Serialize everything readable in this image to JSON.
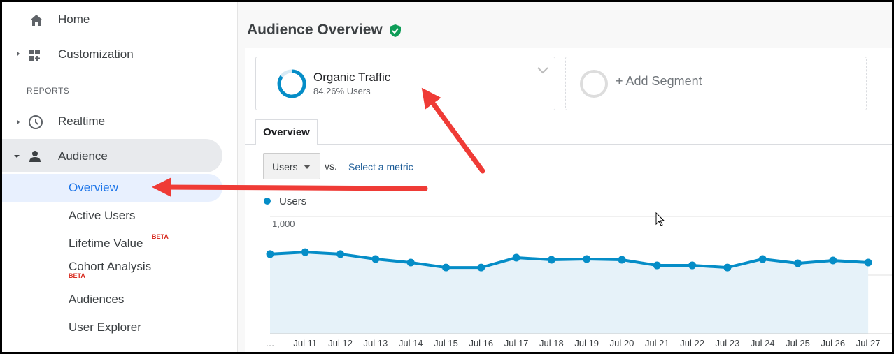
{
  "sidebar": {
    "home": "Home",
    "customization": "Customization",
    "section": "REPORTS",
    "realtime": "Realtime",
    "audience": "Audience",
    "audience_items": [
      "Overview",
      "Active Users",
      "Lifetime Value",
      "Cohort Analysis",
      "Audiences",
      "User Explorer"
    ],
    "badges": [
      "BETA",
      "BETA"
    ]
  },
  "header": {
    "title": "Audience Overview"
  },
  "segments": {
    "active": {
      "name": "Organic Traffic",
      "detail": "84.26% Users"
    },
    "add": "+ Add Segment"
  },
  "tabs": [
    "Overview"
  ],
  "metric_picker": {
    "metric": "Users",
    "vs": "vs.",
    "link": "Select a metric"
  },
  "chart_data": {
    "type": "line",
    "categories": [
      "…",
      "Jul 11",
      "Jul 12",
      "Jul 13",
      "Jul 14",
      "Jul 15",
      "Jul 16",
      "Jul 17",
      "Jul 18",
      "Jul 19",
      "Jul 20",
      "Jul 21",
      "Jul 22",
      "Jul 23",
      "Jul 24",
      "Jul 25",
      "Jul 26",
      "Jul 27"
    ],
    "series": [
      {
        "name": "Users",
        "color": "#058dc7",
        "values": [
          679,
          696,
          679,
          637,
          607,
          565,
          565,
          649,
          631,
          637,
          631,
          583,
          583,
          565,
          637,
          601,
          625,
          607
        ]
      }
    ],
    "ylim": [
      0,
      1000
    ],
    "yticks": [
      {
        "value": 1000,
        "label": "1,000"
      },
      500
    ],
    "grid": true
  }
}
